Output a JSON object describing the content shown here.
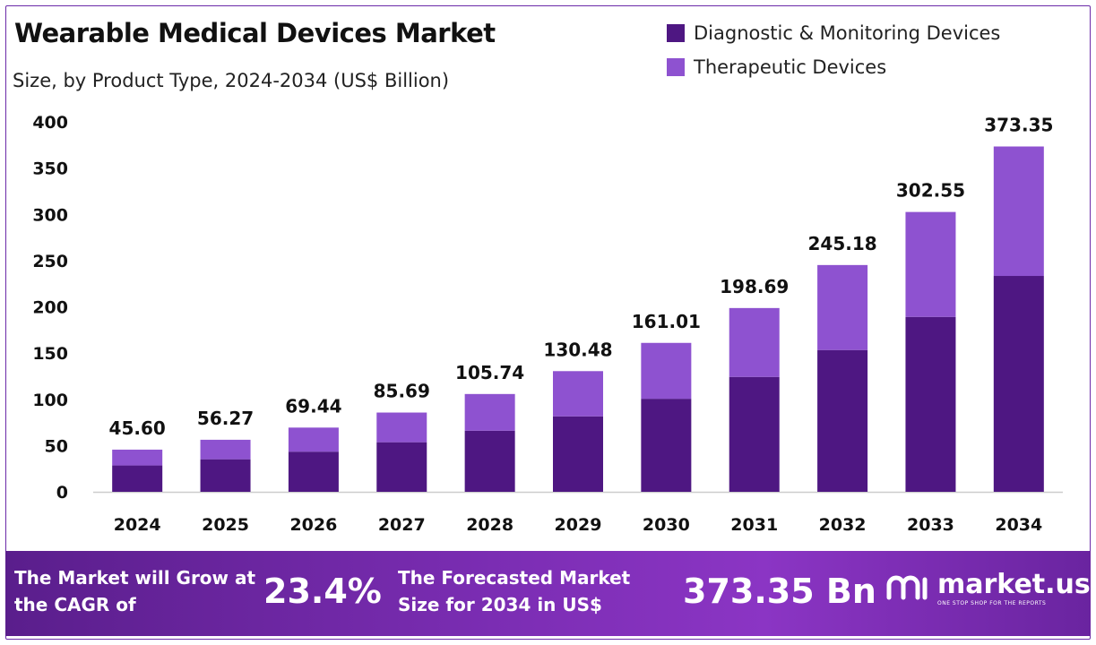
{
  "header": {
    "title": "Wearable Medical Devices Market",
    "subtitle": "Size, by Product Type, 2024-2034 (US$ Billion)"
  },
  "colors": {
    "diagnostic": "#4e1782",
    "therapeutic": "#8e52d0",
    "axis": "#cccccc"
  },
  "chart_data": {
    "type": "bar",
    "stacked": true,
    "categories": [
      "2024",
      "2025",
      "2026",
      "2027",
      "2028",
      "2029",
      "2030",
      "2031",
      "2032",
      "2033",
      "2034"
    ],
    "series": [
      {
        "name": "Diagnostic & Monitoring Devices",
        "values": [
          28.5,
          35.2,
          43.4,
          53.6,
          66.1,
          81.6,
          100.6,
          124.2,
          153.3,
          189.1,
          233.4
        ]
      },
      {
        "name": "Therapeutic Devices",
        "values": [
          17.1,
          21.07,
          26.04,
          32.09,
          39.64,
          48.88,
          60.41,
          74.49,
          91.88,
          113.45,
          139.95
        ]
      }
    ],
    "totals": [
      "45.60",
      "56.27",
      "69.44",
      "85.69",
      "105.74",
      "130.48",
      "161.01",
      "198.69",
      "245.18",
      "302.55",
      "373.35"
    ],
    "yticks": [
      "0",
      "50",
      "100",
      "150",
      "200",
      "250",
      "300",
      "350",
      "400"
    ],
    "ylim": [
      0,
      400
    ],
    "grid": false,
    "legend_position": "top-right"
  },
  "footer": {
    "cagr_text": "The Market will Grow at the CAGR of",
    "cagr_value": "23.4%",
    "forecast_text": "The Forecasted Market Size for 2034 in US$",
    "forecast_value": "373.35 Bn",
    "logo_name": "market.us",
    "logo_tagline": "ONE STOP SHOP FOR THE REPORTS"
  }
}
